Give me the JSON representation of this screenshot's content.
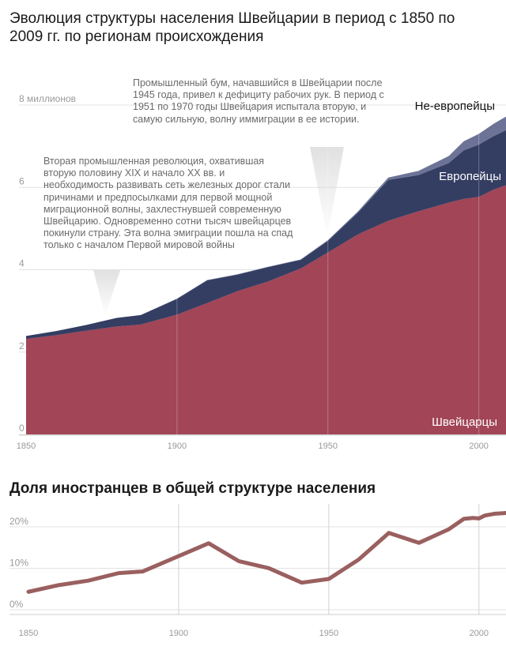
{
  "title": "Эволюция структуры населения Швейцарии в период с 1850 по 2009 гг. по регионам происхождения",
  "subtitle": "Доля иностранцев в общей структуре населения",
  "annotations": [
    "Промышленный бум, начавшийся в Швейцарии после 1945 года, привел к дефициту рабочих рук. В период с 1951 по 1970 годы Швейцария испытала вторую, и самую сильную, волну иммиграции в ее истории.",
    "Вторая промышленная революция, охватившая вторую половину XIX и начало XX вв. и необходимость развивать сеть железных дорог стали причинами и предпосылками для первой мощной миграционной волны, захлестнувшей современную Швейцарию. Одновременно сотни тысяч швейцарцев покинули страну. Эта волна эмиграции пошла на спад только с началом Первой мировой войны"
  ],
  "colors": {
    "swiss": "#a14557",
    "europeans": "#343d62",
    "non_europeans": "#6c7396",
    "share_line": "#9a5f5f",
    "grid": "#d2d2d2"
  },
  "chart_data": [
    {
      "type": "area",
      "stacked": true,
      "title": "Эволюция структуры населения Швейцарии в период с 1850 по 2009 гг. по регионам происхождения",
      "xlim": [
        1850,
        2009
      ],
      "ylim": [
        0,
        8
      ],
      "x_ticks": [
        "1850",
        "1900",
        "1950",
        "2000"
      ],
      "y_ticks": [
        "0",
        "2",
        "4",
        "6",
        "8 миллионов"
      ],
      "x": [
        1850,
        1860,
        1870,
        1880,
        1888,
        1900,
        1910,
        1920,
        1930,
        1941,
        1950,
        1960,
        1970,
        1980,
        1990,
        1995,
        2000,
        2005,
        2009
      ],
      "series": [
        {
          "name": "Швейцарцы",
          "values": [
            2.32,
            2.41,
            2.52,
            2.62,
            2.67,
            2.91,
            3.19,
            3.48,
            3.71,
            4.03,
            4.42,
            4.86,
            5.19,
            5.42,
            5.63,
            5.72,
            5.77,
            5.95,
            6.05
          ]
        },
        {
          "name": "Европейцы",
          "values": [
            0.07,
            0.1,
            0.14,
            0.21,
            0.23,
            0.38,
            0.55,
            0.4,
            0.35,
            0.21,
            0.28,
            0.53,
            0.99,
            0.88,
            0.96,
            1.18,
            1.27,
            1.3,
            1.34
          ]
        },
        {
          "name": "Не-европейцы",
          "values": [
            0.0,
            0.0,
            0.0,
            0.0,
            0.0,
            0.01,
            0.01,
            0.01,
            0.01,
            0.01,
            0.02,
            0.03,
            0.06,
            0.1,
            0.17,
            0.22,
            0.26,
            0.3,
            0.33
          ]
        }
      ]
    },
    {
      "type": "line",
      "title": "Доля иностранцев в общей структуре населения",
      "xlim": [
        1850,
        2009
      ],
      "ylim": [
        0,
        25
      ],
      "x_ticks": [
        "1850",
        "1900",
        "1950",
        "2000"
      ],
      "y_ticks": [
        "0%",
        "10%",
        "20%"
      ],
      "x": [
        1850,
        1860,
        1870,
        1880,
        1888,
        1900,
        1910,
        1920,
        1930,
        1941,
        1950,
        1960,
        1970,
        1980,
        1990,
        1995,
        1998,
        2000,
        2002,
        2005,
        2009
      ],
      "values": [
        3.0,
        4.6,
        5.7,
        7.5,
        7.9,
        11.6,
        14.7,
        10.4,
        8.7,
        5.2,
        6.1,
        10.8,
        17.2,
        14.8,
        18.1,
        20.6,
        20.8,
        20.7,
        21.4,
        21.8,
        22.0
      ]
    }
  ]
}
